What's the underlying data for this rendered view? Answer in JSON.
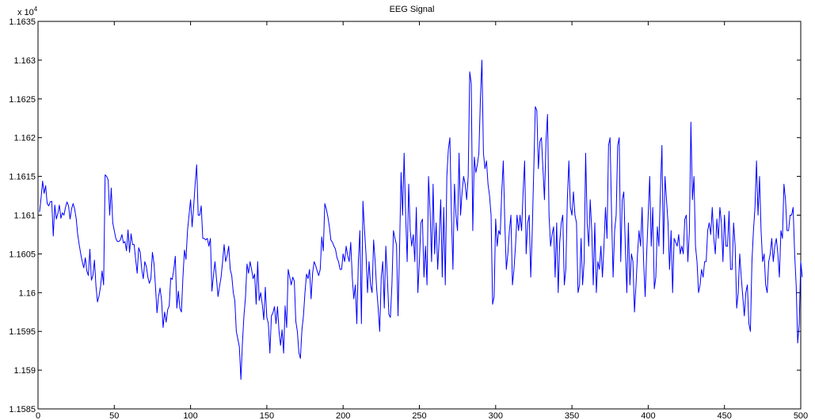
{
  "chart_data": {
    "type": "line",
    "title": "EEG Signal",
    "xlabel": "",
    "ylabel": "",
    "xlim": [
      0,
      500
    ],
    "ylim": [
      1.1585,
      1.1635
    ],
    "y_exponent_label": {
      "base": "x 10",
      "power": "4"
    },
    "xticks": [
      0,
      50,
      100,
      150,
      200,
      250,
      300,
      350,
      400,
      450,
      500
    ],
    "xtick_labels": [
      "0",
      "50",
      "100",
      "150",
      "200",
      "250",
      "300",
      "350",
      "400",
      "450",
      "500"
    ],
    "yticks": [
      1.1585,
      1.159,
      1.1595,
      1.16,
      1.1605,
      1.161,
      1.1615,
      1.162,
      1.1625,
      1.163,
      1.1635
    ],
    "ytick_labels": [
      "1.1585",
      "1.159",
      "1.1595",
      "1.16",
      "1.1605",
      "1.161",
      "1.1615",
      "1.162",
      "1.1625",
      "1.163",
      "1.1635"
    ],
    "grid": false,
    "line_color": "#0000ff",
    "series": [
      {
        "x_start": 1,
        "x_step": 1,
        "values": [
          1.16104,
          1.16122,
          1.16144,
          1.16128,
          1.16138,
          1.16115,
          1.16112,
          1.16117,
          1.16118,
          1.16073,
          1.16113,
          1.16095,
          1.16102,
          1.16113,
          1.16096,
          1.16103,
          1.161,
          1.1611,
          1.16117,
          1.16112,
          1.16095,
          1.16108,
          1.16115,
          1.16108,
          1.16096,
          1.16075,
          1.16062,
          1.1605,
          1.1604,
          1.16032,
          1.16045,
          1.16028,
          1.16022,
          1.16056,
          1.16016,
          1.16022,
          1.16042,
          1.16008,
          1.15988,
          1.15996,
          1.16008,
          1.16028,
          1.1601,
          1.16152,
          1.1615,
          1.16145,
          1.161,
          1.16135,
          1.1609,
          1.1608,
          1.1607,
          1.16066,
          1.16066,
          1.16068,
          1.16075,
          1.16064,
          1.16066,
          1.16054,
          1.16081,
          1.16052,
          1.16076,
          1.16062,
          1.16062,
          1.16043,
          1.16025,
          1.16058,
          1.16052,
          1.1603,
          1.16018,
          1.1604,
          1.16034,
          1.1602,
          1.16012,
          1.16018,
          1.16052,
          1.16038,
          1.16008,
          1.15974,
          1.15995,
          1.16006,
          1.1599,
          1.15955,
          1.15975,
          1.15962,
          1.15978,
          1.15983,
          1.16019,
          1.16017,
          1.1603,
          1.16047,
          1.1598,
          1.16002,
          1.1598,
          1.15975,
          1.1602,
          1.16055,
          1.16043,
          1.1608,
          1.161,
          1.1612,
          1.16085,
          1.1611,
          1.1614,
          1.16165,
          1.161,
          1.161,
          1.16112,
          1.1607,
          1.1607,
          1.16068,
          1.1607,
          1.1606,
          1.1607,
          1.16002,
          1.16022,
          1.1604,
          1.16018,
          1.15995,
          1.16008,
          1.1602,
          1.1604,
          1.16062,
          1.1604,
          1.16048,
          1.1606,
          1.1603,
          1.16022,
          1.16,
          1.1599,
          1.1595,
          1.1594,
          1.1593,
          1.15888,
          1.15935,
          1.1597,
          1.15994,
          1.16037,
          1.16025,
          1.1604,
          1.1603,
          1.16018,
          1.16024,
          1.15985,
          1.1604,
          1.1599,
          1.16,
          1.15985,
          1.15965,
          1.16007,
          1.15968,
          1.1596,
          1.15922,
          1.1597,
          1.15974,
          1.15982,
          1.1596,
          1.15982,
          1.1595,
          1.15932,
          1.15952,
          1.15922,
          1.15983,
          1.15955,
          1.1603,
          1.1602,
          1.1601,
          1.1602,
          1.16015,
          1.15963,
          1.1595,
          1.15923,
          1.15915,
          1.15952,
          1.1597,
          1.16,
          1.16024,
          1.16018,
          1.1603,
          1.15992,
          1.16025,
          1.1604,
          1.16035,
          1.16028,
          1.16022,
          1.1603,
          1.16072,
          1.16054,
          1.16115,
          1.16108,
          1.16098,
          1.16085,
          1.16068,
          1.16065,
          1.1606,
          1.16056,
          1.16045,
          1.1604,
          1.1603,
          1.1603,
          1.1605,
          1.1604,
          1.1606,
          1.16048,
          1.1604,
          1.16065,
          1.1602,
          1.15992,
          1.1601,
          1.1596,
          1.1604,
          1.1608,
          1.1596,
          1.16118,
          1.16082,
          1.1605,
          1.16,
          1.1604,
          1.1601,
          1.16,
          1.16068,
          1.1604,
          1.16005,
          1.1598,
          1.1595,
          1.1602,
          1.1604,
          1.1598,
          1.1606,
          1.1602,
          1.15972,
          1.15968,
          1.1601,
          1.1608,
          1.1607,
          1.16062,
          1.1597,
          1.16056,
          1.16155,
          1.161,
          1.1618,
          1.161,
          1.1604,
          1.1614,
          1.1608,
          1.1606,
          1.16075,
          1.1604,
          1.1611,
          1.16,
          1.1604,
          1.1609,
          1.16095,
          1.1602,
          1.1606,
          1.1601,
          1.1615,
          1.16105,
          1.1604,
          1.1614,
          1.1605,
          1.1609,
          1.1603,
          1.1607,
          1.1612,
          1.1602,
          1.1611,
          1.1601,
          1.1615,
          1.16185,
          1.162,
          1.161,
          1.1603,
          1.1614,
          1.161,
          1.1608,
          1.1618,
          1.161,
          1.1613,
          1.1615,
          1.1614,
          1.1612,
          1.1615,
          1.16285,
          1.1627,
          1.1608,
          1.16175,
          1.16155,
          1.16165,
          1.1618,
          1.1625,
          1.163,
          1.1618,
          1.1616,
          1.1617,
          1.1614,
          1.16125,
          1.161,
          1.15985,
          1.15995,
          1.16095,
          1.1606,
          1.1608,
          1.16075,
          1.1613,
          1.1617,
          1.1609,
          1.1603,
          1.1605,
          1.1608,
          1.161,
          1.1601,
          1.1603,
          1.1606,
          1.161,
          1.1608,
          1.161,
          1.1608,
          1.1613,
          1.1617,
          1.1605,
          1.1609,
          1.161,
          1.1602,
          1.1608,
          1.1616,
          1.1624,
          1.16235,
          1.1616,
          1.16195,
          1.162,
          1.1616,
          1.1612,
          1.16195,
          1.1623,
          1.161,
          1.1606,
          1.16075,
          1.16085,
          1.1602,
          1.1609,
          1.16,
          1.16065,
          1.1609,
          1.161,
          1.1601,
          1.1603,
          1.1612,
          1.1617,
          1.1611,
          1.161,
          1.1613,
          1.161,
          1.1609,
          1.16,
          1.1601,
          1.1607,
          1.1601,
          1.1604,
          1.1618,
          1.1609,
          1.1606,
          1.1612,
          1.1608,
          1.1601,
          1.1609,
          1.16,
          1.1604,
          1.1603,
          1.1606,
          1.1602,
          1.1606,
          1.1611,
          1.1607,
          1.1619,
          1.162,
          1.161,
          1.1602,
          1.1608,
          1.161,
          1.1619,
          1.162,
          1.1604,
          1.1612,
          1.1613,
          1.1606,
          1.16,
          1.1609,
          1.1601,
          1.1605,
          1.1604,
          1.15975,
          1.1601,
          1.1605,
          1.1608,
          1.1606,
          1.1611,
          1.1604,
          1.15995,
          1.1605,
          1.161,
          1.1615,
          1.1606,
          1.1611,
          1.16005,
          1.1602,
          1.16085,
          1.1606,
          1.1613,
          1.1619,
          1.1605,
          1.1615,
          1.1612,
          1.1609,
          1.1603,
          1.1608,
          1.16,
          1.1607,
          1.16065,
          1.1606,
          1.16075,
          1.1605,
          1.1606,
          1.1605,
          1.16095,
          1.161,
          1.1604,
          1.1608,
          1.1622,
          1.1612,
          1.1615,
          1.1606,
          1.1604,
          1.16,
          1.1601,
          1.1603,
          1.1602,
          1.1604,
          1.1604,
          1.1608,
          1.1609,
          1.16075,
          1.1611,
          1.1607,
          1.1605,
          1.16095,
          1.1607,
          1.1611,
          1.1609,
          1.1604,
          1.161,
          1.1606,
          1.1606,
          1.16105,
          1.1603,
          1.1603,
          1.1609,
          1.1606,
          1.1598,
          1.16,
          1.1605,
          1.1602,
          1.15995,
          1.1597,
          1.16,
          1.1601,
          1.1596,
          1.1595,
          1.1604,
          1.1608,
          1.1611,
          1.1617,
          1.161,
          1.1615,
          1.1608,
          1.1604,
          1.1605,
          1.1601,
          1.16,
          1.1604,
          1.1605,
          1.1607,
          1.1604,
          1.1606,
          1.1607,
          1.1605,
          1.1602,
          1.1608,
          1.1607,
          1.1614,
          1.1612,
          1.1608,
          1.1608,
          1.161,
          1.161,
          1.1611,
          1.1605,
          1.1601,
          1.15935,
          1.1596,
          1.1604,
          1.1602
        ]
      }
    ]
  }
}
